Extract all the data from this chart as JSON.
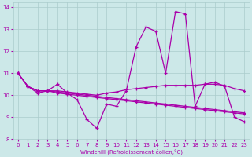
{
  "xlabel": "Windchill (Refroidissement éolien,°C)",
  "background_color": "#cce8e8",
  "line_color": "#aa00aa",
  "grid_color": "#aacccc",
  "xlim": [
    -0.5,
    23.5
  ],
  "ylim": [
    8.0,
    14.2
  ],
  "yticks": [
    8,
    9,
    10,
    11,
    12,
    13,
    14
  ],
  "xticks": [
    0,
    1,
    2,
    3,
    4,
    5,
    6,
    7,
    8,
    9,
    10,
    11,
    12,
    13,
    14,
    15,
    16,
    17,
    18,
    19,
    20,
    21,
    22,
    23
  ],
  "series1": [
    11.0,
    10.4,
    10.1,
    10.2,
    10.5,
    10.1,
    9.8,
    8.9,
    8.5,
    9.6,
    9.5,
    10.2,
    12.2,
    13.1,
    12.9,
    11.0,
    13.8,
    13.7,
    9.5,
    10.5,
    10.6,
    10.4,
    9.0,
    8.8
  ],
  "series2": [
    11.0,
    10.4,
    10.2,
    10.2,
    10.2,
    10.15,
    10.1,
    10.05,
    10.0,
    10.1,
    10.15,
    10.25,
    10.3,
    10.35,
    10.4,
    10.45,
    10.45,
    10.45,
    10.45,
    10.5,
    10.5,
    10.45,
    10.3,
    10.2
  ],
  "series3": [
    11.0,
    10.4,
    10.2,
    10.2,
    10.15,
    10.1,
    10.05,
    10.0,
    9.95,
    9.9,
    9.85,
    9.8,
    9.75,
    9.7,
    9.65,
    9.6,
    9.55,
    9.5,
    9.45,
    9.4,
    9.35,
    9.3,
    9.25,
    9.2
  ],
  "series4": [
    11.0,
    10.4,
    10.2,
    10.2,
    10.1,
    10.05,
    10.0,
    9.95,
    9.9,
    9.85,
    9.8,
    9.75,
    9.7,
    9.65,
    9.6,
    9.55,
    9.5,
    9.45,
    9.4,
    9.35,
    9.3,
    9.25,
    9.2,
    9.15
  ]
}
